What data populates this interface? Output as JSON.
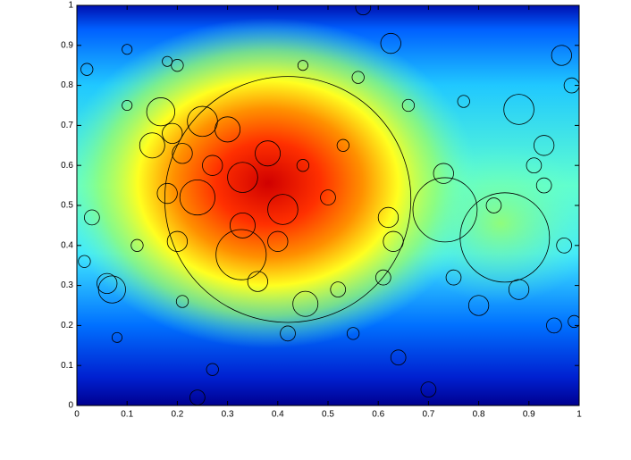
{
  "chart_data": {
    "type": "scatter",
    "x": [
      0.42,
      0.733,
      0.852,
      0.167,
      0.57,
      0.625,
      0.965,
      0.88,
      0.06,
      0.07,
      0.327,
      0.455,
      0.25,
      0.3,
      0.33,
      0.24,
      0.27,
      0.38,
      0.41,
      0.33,
      0.4,
      0.2,
      0.18,
      0.21,
      0.15,
      0.19,
      0.36,
      0.62,
      0.61,
      0.73,
      0.8,
      0.88,
      0.83,
      0.93,
      0.97,
      0.99,
      0.95,
      0.985,
      0.93,
      0.91,
      0.03,
      0.015,
      0.12,
      0.08,
      0.21,
      0.24,
      0.27,
      0.42,
      0.52,
      0.55,
      0.64,
      0.7,
      0.75,
      0.77,
      0.56,
      0.45,
      0.1,
      0.1,
      0.02,
      0.5,
      0.63,
      0.66,
      0.2,
      0.18,
      0.45,
      0.53
    ],
    "y": [
      0.515,
      0.489,
      0.42,
      0.734,
      0.995,
      0.905,
      0.875,
      0.74,
      0.305,
      0.29,
      0.377,
      0.254,
      0.71,
      0.69,
      0.57,
      0.52,
      0.6,
      0.63,
      0.49,
      0.45,
      0.41,
      0.41,
      0.53,
      0.63,
      0.65,
      0.68,
      0.31,
      0.47,
      0.32,
      0.58,
      0.25,
      0.29,
      0.5,
      0.55,
      0.4,
      0.21,
      0.2,
      0.8,
      0.65,
      0.6,
      0.47,
      0.36,
      0.4,
      0.17,
      0.26,
      0.02,
      0.09,
      0.18,
      0.29,
      0.18,
      0.12,
      0.04,
      0.32,
      0.76,
      0.82,
      0.85,
      0.75,
      0.89,
      0.84,
      0.52,
      0.41,
      0.75,
      0.85,
      0.86,
      0.6,
      0.65
    ],
    "sizes": [
      0.245,
      0.064,
      0.089,
      0.028,
      0.015,
      0.02,
      0.02,
      0.03,
      0.02,
      0.027,
      0.05,
      0.025,
      0.03,
      0.025,
      0.03,
      0.035,
      0.02,
      0.025,
      0.03,
      0.025,
      0.02,
      0.02,
      0.02,
      0.02,
      0.025,
      0.02,
      0.02,
      0.02,
      0.015,
      0.02,
      0.02,
      0.02,
      0.015,
      0.015,
      0.015,
      0.012,
      0.015,
      0.015,
      0.02,
      0.015,
      0.015,
      0.012,
      0.012,
      0.01,
      0.012,
      0.015,
      0.012,
      0.015,
      0.015,
      0.012,
      0.015,
      0.015,
      0.015,
      0.012,
      0.012,
      0.01,
      0.01,
      0.01,
      0.012,
      0.015,
      0.02,
      0.012,
      0.012,
      0.01,
      0.012,
      0.012
    ],
    "color": "#000000",
    "xlim": [
      0,
      1
    ],
    "ylim": [
      0,
      1
    ],
    "xticks": [
      0,
      0.1,
      0.2,
      0.3,
      0.4,
      0.5,
      0.6,
      0.7,
      0.8,
      0.9,
      1
    ],
    "yticks": [
      0,
      0.1,
      0.2,
      0.3,
      0.4,
      0.5,
      0.6,
      0.7,
      0.8,
      0.9,
      1
    ]
  }
}
